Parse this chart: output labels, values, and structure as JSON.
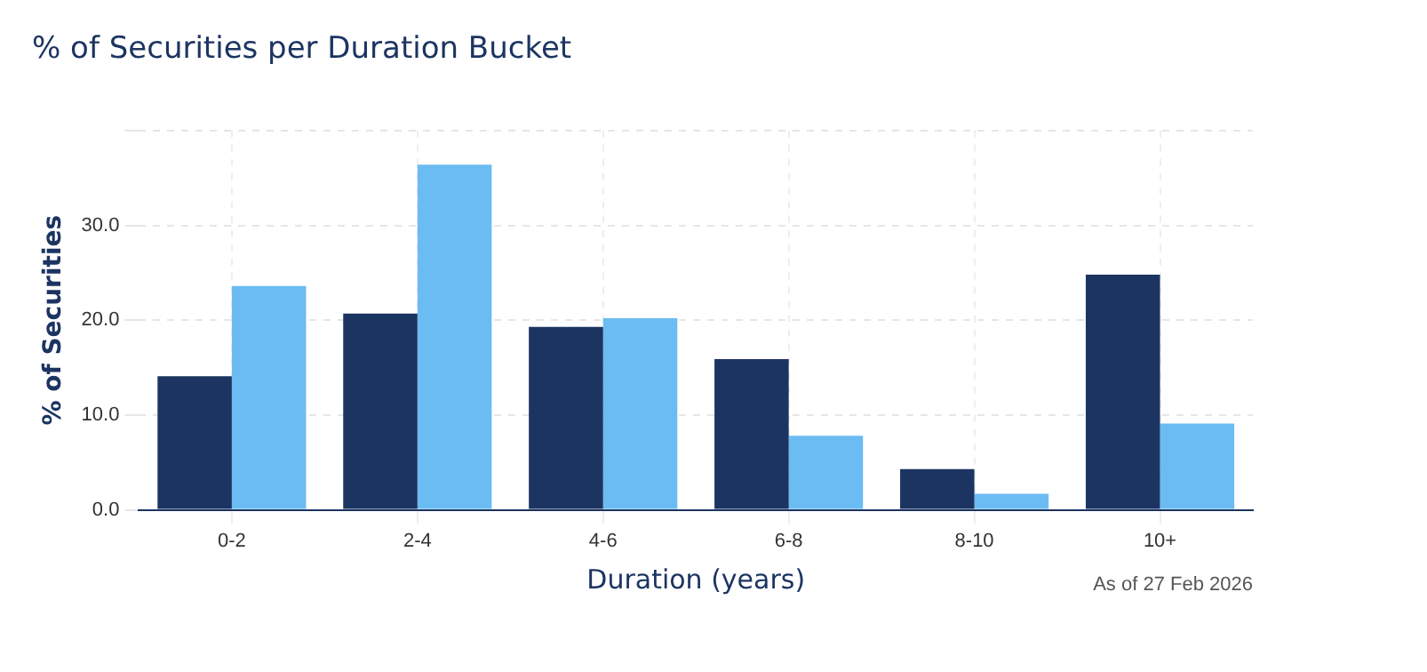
{
  "chart_data": {
    "type": "bar",
    "title": "% of Securities per Duration Bucket",
    "xlabel": "Duration (years)",
    "ylabel": "% of Securities",
    "categories": [
      "0-2",
      "2-4",
      "4-6",
      "6-8",
      "8-10",
      "10+"
    ],
    "series": [
      {
        "color": "#1c3461",
        "values": [
          14.1,
          20.7,
          19.3,
          15.9,
          4.3,
          24.8
        ]
      },
      {
        "color": "#6bbcf2",
        "values": [
          23.6,
          36.4,
          20.2,
          7.8,
          1.7,
          9.1
        ]
      }
    ],
    "ylim": [
      0,
      40
    ],
    "yticks": [
      {
        "value": 0,
        "label": "0.0"
      },
      {
        "value": 10,
        "label": "10.0"
      },
      {
        "value": 20,
        "label": "20.0"
      },
      {
        "value": 30,
        "label": "30.0"
      },
      {
        "value": 40,
        "label": null
      }
    ],
    "grid": true,
    "annotations": [
      "As of 27 Feb 2026"
    ]
  }
}
